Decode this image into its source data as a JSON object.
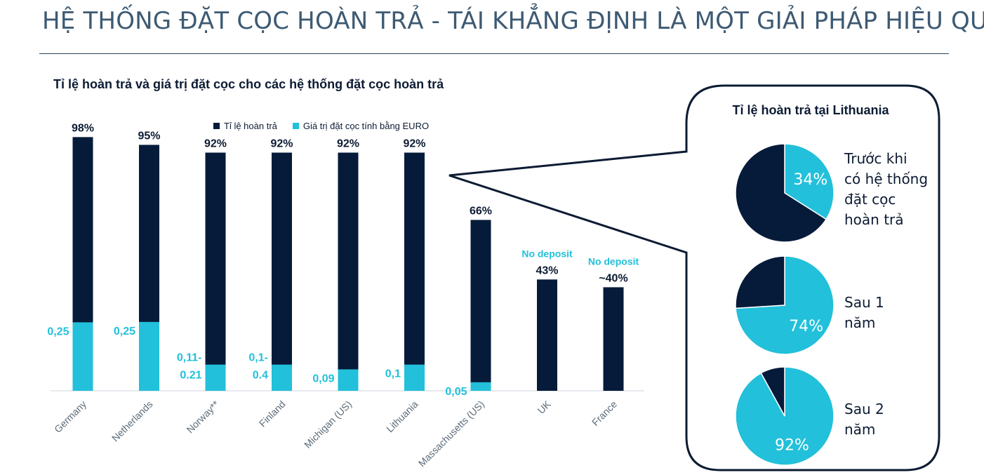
{
  "page": {
    "title": "HỆ THỐNG ĐẶT CỌC HOÀN TRẢ - TÁI KHẲNG ĐỊNH LÀ MỘT GIẢI PHÁP HIỆU QUẢ"
  },
  "colors": {
    "dark": "#061b3a",
    "cyan": "#22c0da",
    "title": "#3d5a73"
  },
  "chart_data": [
    {
      "type": "bar",
      "title": "Tỉ lệ hoàn trả và giá trị đặt cọc cho các hệ thống đặt cọc hoàn trả",
      "categories": [
        "Germany",
        "Netherlands",
        "Norway**",
        "Finland",
        "Michigan (US)",
        "Lithuania",
        "Massachusetts (US)",
        "UK",
        "France"
      ],
      "legend": [
        "Tỉ lệ hoàn trả",
        "Giá trị đặt cọc tính bằng EURO"
      ],
      "legend_position": "top",
      "ylim": [
        0,
        100
      ],
      "grid": false,
      "series": [
        {
          "name": "Tỉ lệ hoàn trả",
          "values": [
            98,
            95,
            92,
            92,
            92,
            92,
            66,
            43,
            40
          ],
          "labels": [
            "98%",
            "95%",
            "92%",
            "92%",
            "92%",
            "92%",
            "66%",
            "43%",
            "~40%"
          ]
        },
        {
          "name": "Giá trị đặt cọc tính bằng EURO",
          "values": [
            0.25,
            0.25,
            0.11,
            0.1,
            0.09,
            0.1,
            0.05,
            null,
            null
          ],
          "labels": [
            [
              "0,25"
            ],
            [
              "0,25"
            ],
            [
              "0,11-",
              "0.21"
            ],
            [
              "0,1-",
              "0.4"
            ],
            [
              "0,09"
            ],
            [
              "0,1"
            ],
            [
              "0,05"
            ],
            [],
            []
          ],
          "display_fraction_of_bar": [
            0.27,
            0.28,
            0.11,
            0.11,
            0.09,
            0.11,
            0.05,
            0,
            0
          ]
        }
      ],
      "annotations": [
        {
          "category": "UK",
          "text": "No deposit"
        },
        {
          "category": "France",
          "text": "No deposit"
        }
      ]
    },
    {
      "type": "pie",
      "title": "Tỉ lệ hoàn trả tại Lithuania",
      "pies": [
        {
          "label_lines": [
            "Trước khi",
            "có hệ thống",
            "đặt cọc",
            "hoàn trả"
          ],
          "value": 34,
          "value_label": "34%"
        },
        {
          "label_lines": [
            "Sau 1",
            "năm"
          ],
          "value": 74,
          "value_label": "74%"
        },
        {
          "label_lines": [
            "Sau 2",
            "năm"
          ],
          "value": 92,
          "value_label": "92%"
        }
      ]
    }
  ]
}
